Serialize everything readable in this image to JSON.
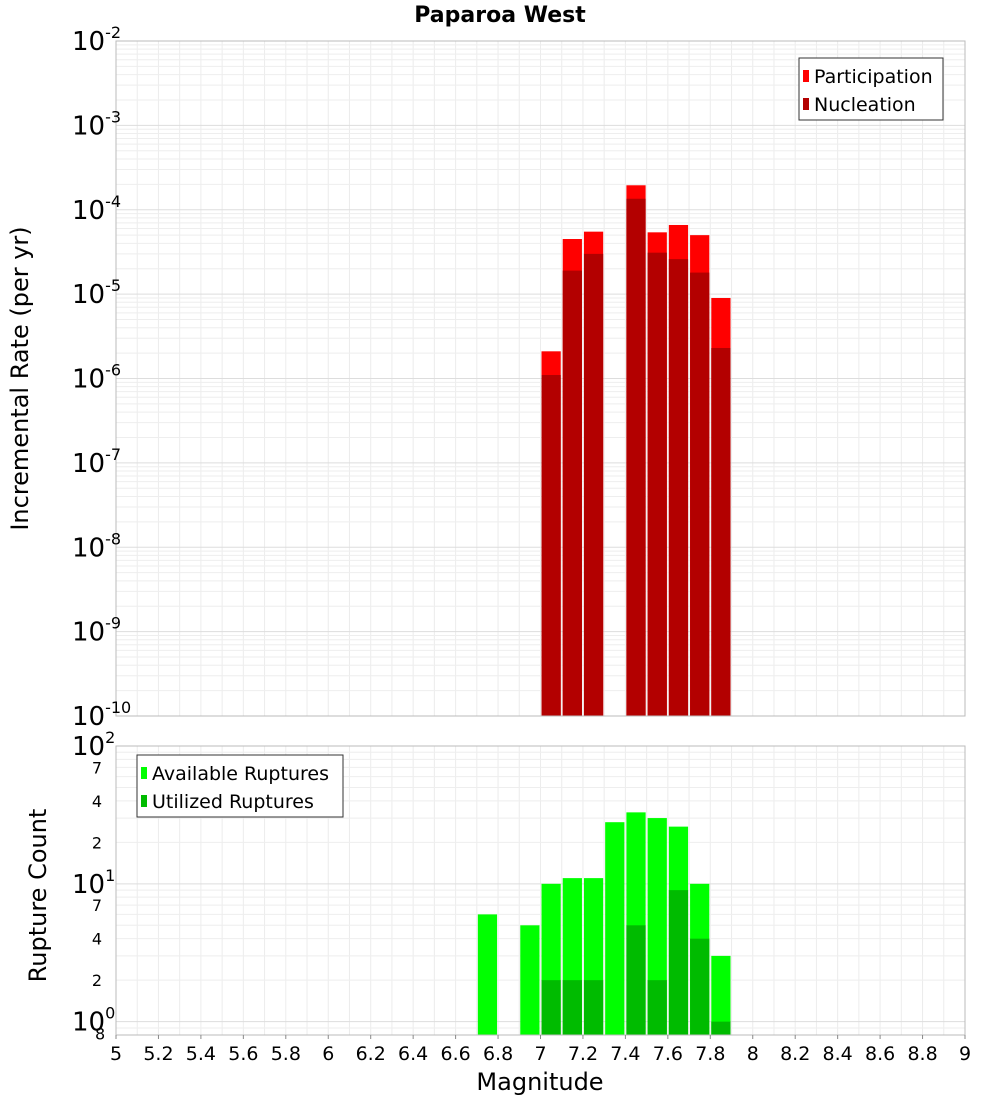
{
  "chart_data": [
    {
      "type": "bar",
      "title": "Paparoa West",
      "xlabel": "Magnitude",
      "ylabel": "Incremental Rate (per yr)",
      "xlim": [
        5,
        9
      ],
      "ylim": [
        1e-10,
        0.01
      ],
      "y_scale": "log",
      "x_ticks": [
        "5",
        "5.2",
        "5.4",
        "5.6",
        "5.8",
        "6",
        "6.2",
        "6.4",
        "6.6",
        "6.8",
        "7",
        "7.2",
        "7.4",
        "7.6",
        "7.8",
        "8",
        "8.2",
        "8.4",
        "8.6",
        "8.8",
        "9"
      ],
      "y_ticks": [
        {
          "base": "10",
          "exp": "-10",
          "value": 1e-10
        },
        {
          "base": "10",
          "exp": "-9",
          "value": 1e-09
        },
        {
          "base": "10",
          "exp": "-8",
          "value": 1e-08
        },
        {
          "base": "10",
          "exp": "-7",
          "value": 1e-07
        },
        {
          "base": "10",
          "exp": "-6",
          "value": 1e-06
        },
        {
          "base": "10",
          "exp": "-5",
          "value": 1e-05
        },
        {
          "base": "10",
          "exp": "-4",
          "value": 0.0001
        },
        {
          "base": "10",
          "exp": "-3",
          "value": 0.001
        },
        {
          "base": "10",
          "exp": "-2",
          "value": 0.01
        }
      ],
      "legend_position": "top-right",
      "grid": true,
      "x": [
        7.05,
        7.15,
        7.25,
        7.45,
        7.55,
        7.65,
        7.75,
        7.85
      ],
      "series": [
        {
          "name": "Participation",
          "color": "#ff0000",
          "values": [
            2.1e-06,
            4.5e-05,
            5.5e-05,
            0.000195,
            5.4e-05,
            6.6e-05,
            5e-05,
            9e-06
          ]
        },
        {
          "name": "Nucleation",
          "color": "#b30000",
          "values": [
            1.1e-06,
            1.9e-05,
            3e-05,
            0.000135,
            3.1e-05,
            2.6e-05,
            1.8e-05,
            2.3e-06
          ]
        }
      ]
    },
    {
      "type": "bar",
      "xlabel": "Magnitude",
      "ylabel": "Rupture Count",
      "xlim": [
        5,
        9
      ],
      "ylim": [
        0.8,
        100
      ],
      "y_scale": "log",
      "y_ticks": [
        {
          "base": "10",
          "exp": "0",
          "value": 1,
          "under": "8"
        },
        {
          "label": "2",
          "value": 2
        },
        {
          "label": "4",
          "value": 4
        },
        {
          "label": "7",
          "value": 7
        },
        {
          "base": "10",
          "exp": "1",
          "value": 10
        },
        {
          "label": "2",
          "value": 20
        },
        {
          "label": "4",
          "value": 40
        },
        {
          "label": "7",
          "value": 70
        },
        {
          "base": "10",
          "exp": "2",
          "value": 100
        }
      ],
      "legend_position": "top-left",
      "grid": true,
      "x": [
        6.75,
        6.95,
        7.05,
        7.15,
        7.25,
        7.35,
        7.45,
        7.55,
        7.65,
        7.75,
        7.85
      ],
      "series": [
        {
          "name": "Available Ruptures",
          "color": "#00ff00",
          "values": [
            6,
            5,
            10,
            11,
            11,
            28,
            33,
            30,
            26,
            10,
            3
          ]
        },
        {
          "name": "Utilized Ruptures",
          "color": "#00bb00",
          "values": [
            0,
            0,
            2,
            2,
            2,
            0,
            5,
            2,
            9,
            4,
            1
          ]
        }
      ]
    }
  ]
}
